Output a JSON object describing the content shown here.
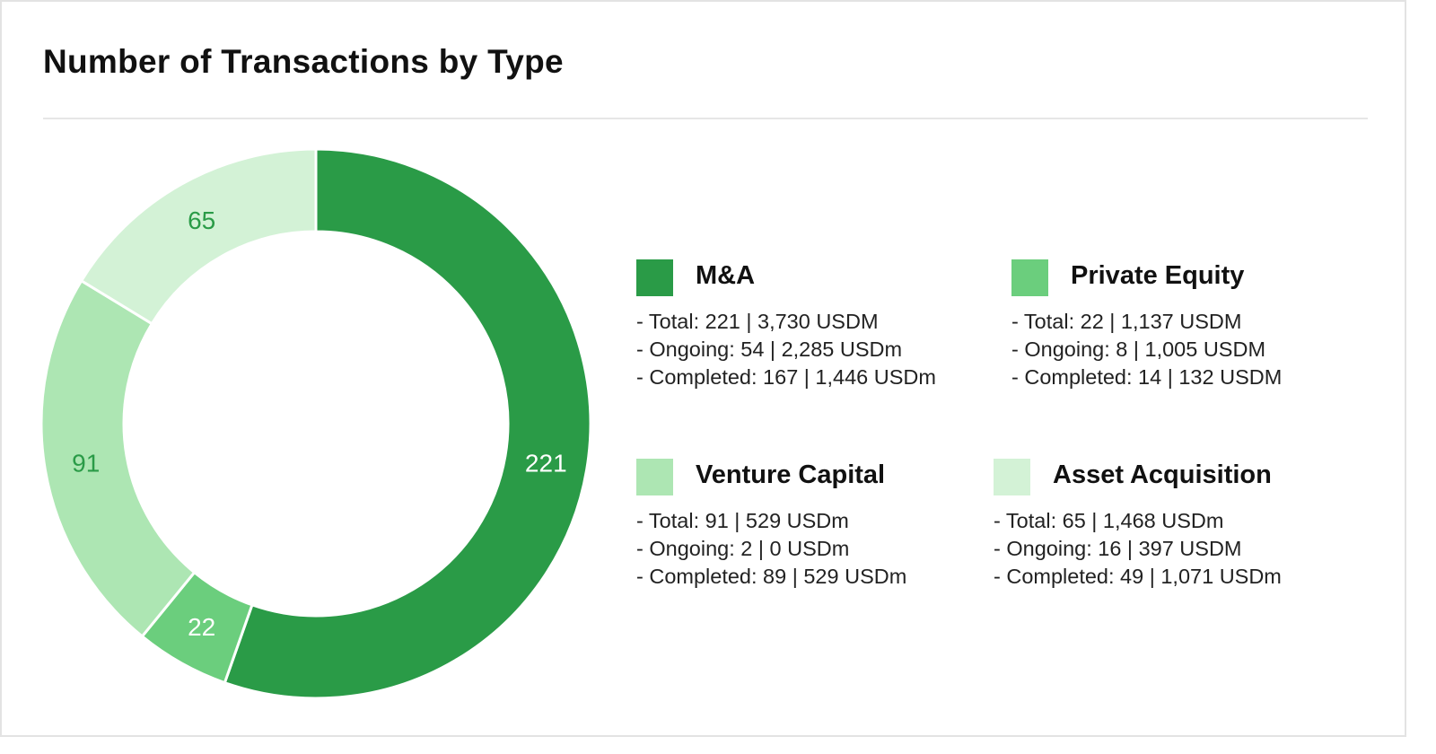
{
  "title": "Number of Transactions by Type",
  "chart_data": {
    "type": "pie",
    "subtype": "donut",
    "title": "Number of Transactions by Type",
    "categories": [
      "M&A",
      "Private Equity",
      "Venture Capital",
      "Asset Acquisition"
    ],
    "values": [
      221,
      22,
      91,
      65
    ],
    "data_labels": [
      "221",
      "22",
      "91",
      "65"
    ],
    "colors": [
      "#2a9b47",
      "#6bce7d",
      "#ade6b3",
      "#d3f2d6"
    ],
    "label_colors": [
      "#ffffff",
      "#ffffff",
      "#2a9b47",
      "#2a9b47"
    ],
    "legend_position": "right",
    "details": [
      [
        "- Total: 221 | 3,730 USDM",
        "- Ongoing: 54 | 2,285 USDm",
        "- Completed: 167 | 1,446 USDm"
      ],
      [
        "- Total: 22 | 1,137 USDM",
        "- Ongoing: 8 | 1,005 USDM",
        "- Completed: 14 | 132 USDM"
      ],
      [
        "- Total: 91 | 529 USDm",
        "- Ongoing: 2 | 0 USDm",
        "- Completed: 89 | 529 USDm"
      ],
      [
        "- Total: 65 | 1,468 USDm",
        "- Ongoing: 16 | 397 USDM",
        "- Completed: 49 | 1,071 USDm"
      ]
    ]
  }
}
